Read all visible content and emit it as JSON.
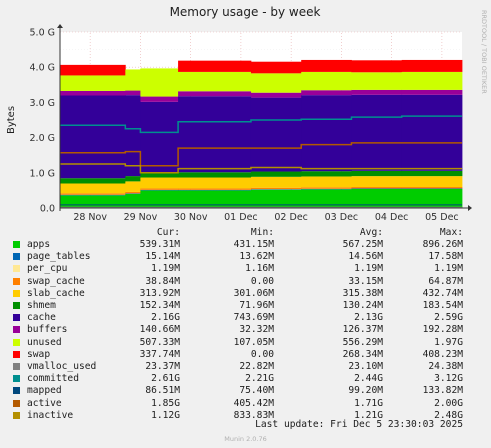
{
  "chart_data": {
    "type": "area",
    "title": "Memory usage - by week",
    "ylabel": "Bytes",
    "side_label": "RRDTOOL / TOBI OETIKER",
    "ylim": [
      0,
      5
    ],
    "y_unit": "G",
    "y_ticks": [
      "0.0",
      "1.0 G",
      "2.0 G",
      "3.0 G",
      "4.0 G",
      "5.0 G"
    ],
    "x_ticks": [
      "28 Nov",
      "29 Nov",
      "30 Nov",
      "01 Dec",
      "02 Dec",
      "03 Dec",
      "04 Dec",
      "05 Dec"
    ],
    "grid": true,
    "stack_order": [
      "apps",
      "page_tables",
      "per_cpu",
      "swap_cache",
      "slab_cache",
      "shmem",
      "cache",
      "buffers",
      "unused",
      "swap"
    ],
    "line_series": [
      "vmalloc_used",
      "committed",
      "mapped",
      "active",
      "inactive"
    ],
    "segments": [
      {
        "from": 27.4,
        "to": 28.7,
        "apps": 0.36,
        "slab": 0.28,
        "cache": 2.35,
        "buffers": 0.13,
        "unused": 0.44,
        "swap": 0.3,
        "committed": 2.35,
        "mapped": 0.09,
        "active": 1.57,
        "inactive": 1.25
      },
      {
        "from": 28.7,
        "to": 29.0,
        "apps": 0.4,
        "slab": 0.3,
        "cache": 2.3,
        "buffers": 0.13,
        "unused": 0.6,
        "swap": 0.0,
        "committed": 2.25,
        "mapped": 0.09,
        "active": 1.6,
        "inactive": 1.2
      },
      {
        "from": 29.0,
        "to": 29.75,
        "apps": 0.5,
        "slab": 0.31,
        "cache": 2.0,
        "buffers": 0.15,
        "unused": 0.8,
        "swap": 0.0,
        "committed": 2.15,
        "mapped": 0.09,
        "active": 1.2,
        "inactive": 1.0
      },
      {
        "from": 29.75,
        "to": 31.2,
        "apps": 0.5,
        "slab": 0.31,
        "cache": 2.16,
        "buffers": 0.14,
        "unused": 0.55,
        "swap": 0.32,
        "committed": 2.45,
        "mapped": 0.09,
        "active": 1.7,
        "inactive": 1.12
      },
      {
        "from": 31.2,
        "to": 32.2,
        "apps": 0.52,
        "slab": 0.31,
        "cache": 2.1,
        "buffers": 0.14,
        "unused": 0.55,
        "swap": 0.33,
        "committed": 2.5,
        "mapped": 0.09,
        "active": 1.7,
        "inactive": 1.15
      },
      {
        "from": 32.2,
        "to": 33.2,
        "apps": 0.53,
        "slab": 0.31,
        "cache": 2.16,
        "buffers": 0.14,
        "unused": 0.52,
        "swap": 0.34,
        "committed": 2.52,
        "mapped": 0.09,
        "active": 1.8,
        "inactive": 1.12
      },
      {
        "from": 33.2,
        "to": 34.2,
        "apps": 0.54,
        "slab": 0.31,
        "cache": 2.16,
        "buffers": 0.14,
        "unused": 0.5,
        "swap": 0.34,
        "committed": 2.58,
        "mapped": 0.09,
        "active": 1.85,
        "inactive": 1.12
      },
      {
        "from": 34.2,
        "to": 35.4,
        "apps": 0.54,
        "slab": 0.31,
        "cache": 2.16,
        "buffers": 0.14,
        "unused": 0.51,
        "swap": 0.34,
        "committed": 2.61,
        "mapped": 0.09,
        "active": 1.85,
        "inactive": 1.12
      }
    ],
    "legend": {
      "columns": [
        "Cur:",
        "Min:",
        "Avg:",
        "Max:"
      ],
      "rows": [
        {
          "name": "apps",
          "color": "#00cc00",
          "cur": "539.31M",
          "min": "431.15M",
          "avg": "567.25M",
          "max": "896.26M"
        },
        {
          "name": "page_tables",
          "color": "#0066b3",
          "cur": "15.14M",
          "min": "13.62M",
          "avg": "14.56M",
          "max": "17.58M"
        },
        {
          "name": "per_cpu",
          "color": "#ffe894",
          "cur": "1.19M",
          "min": "1.16M",
          "avg": "1.19M",
          "max": "1.19M"
        },
        {
          "name": "swap_cache",
          "color": "#ff8000",
          "cur": "38.84M",
          "min": "0.00",
          "avg": "33.15M",
          "max": "64.87M"
        },
        {
          "name": "slab_cache",
          "color": "#ffcc00",
          "cur": "313.92M",
          "min": "301.06M",
          "avg": "315.38M",
          "max": "432.74M"
        },
        {
          "name": "shmem",
          "color": "#008f00",
          "cur": "152.34M",
          "min": "71.96M",
          "avg": "130.24M",
          "max": "183.54M"
        },
        {
          "name": "cache",
          "color": "#330099",
          "cur": "2.16G",
          "min": "743.69M",
          "avg": "2.13G",
          "max": "2.59G"
        },
        {
          "name": "buffers",
          "color": "#990099",
          "cur": "140.66M",
          "min": "32.32M",
          "avg": "126.37M",
          "max": "192.28M"
        },
        {
          "name": "unused",
          "color": "#ccff00",
          "cur": "507.33M",
          "min": "107.05M",
          "avg": "556.29M",
          "max": "1.97G"
        },
        {
          "name": "swap",
          "color": "#ff0000",
          "cur": "337.74M",
          "min": "0.00",
          "avg": "268.34M",
          "max": "408.23M"
        },
        {
          "name": "vmalloc_used",
          "color": "#808080",
          "cur": "23.37M",
          "min": "22.82M",
          "avg": "23.10M",
          "max": "24.38M"
        },
        {
          "name": "committed",
          "color": "#008f8f",
          "cur": "2.61G",
          "min": "2.21G",
          "avg": "2.44G",
          "max": "3.12G"
        },
        {
          "name": "mapped",
          "color": "#00487d",
          "cur": "86.51M",
          "min": "75.40M",
          "avg": "99.20M",
          "max": "133.82M"
        },
        {
          "name": "active",
          "color": "#b35a00",
          "cur": "1.85G",
          "min": "405.42M",
          "avg": "1.71G",
          "max": "2.00G"
        },
        {
          "name": "inactive",
          "color": "#b38f00",
          "cur": "1.12G",
          "min": "833.83M",
          "avg": "1.21G",
          "max": "2.48G"
        }
      ]
    },
    "last_update": "Last update: Fri Dec  5 23:30:03 2025",
    "footer": "Munin 2.0.76"
  }
}
